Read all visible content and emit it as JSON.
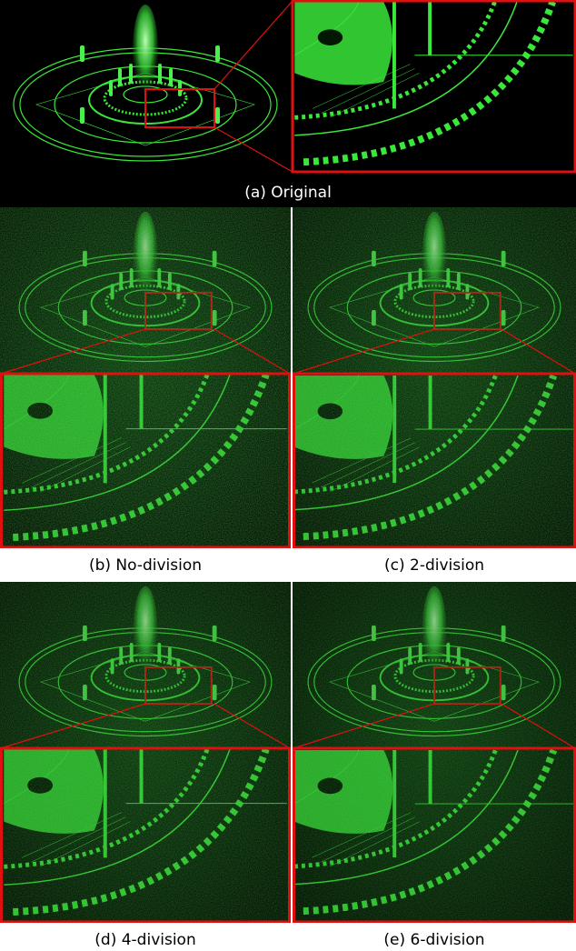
{
  "figure": {
    "captions": [
      "(a) Original",
      "(b) No-division",
      "(c) 2-division",
      "(d) 4-division",
      "(e) 6-division"
    ]
  }
}
